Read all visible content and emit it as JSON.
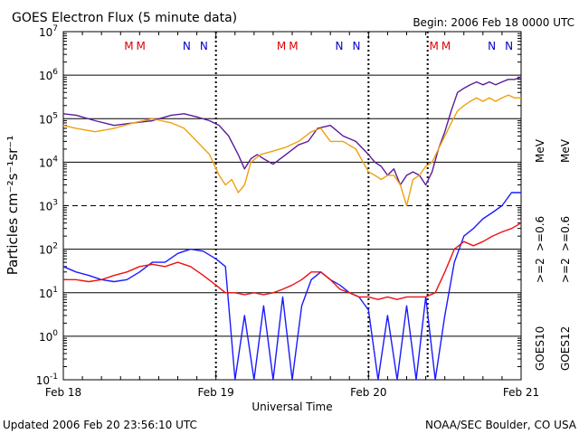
{
  "header": {
    "title": "GOES Electron Flux (5 minute data)",
    "begin": "Begin: 2006 Feb 18 0000 UTC"
  },
  "footer": {
    "updated": "Updated 2006 Feb 20 23:56:10 UTC",
    "credit": "NOAA/SEC Boulder, CO USA"
  },
  "colors": {
    "goes10_ge2": "#1a1aff",
    "goes10_ge06": "#5a1a9a",
    "goes12_ge2": "#ee1111",
    "goes12_ge06": "#f0a010",
    "marker_M": "#dd0000",
    "marker_N": "#0000cc"
  },
  "chart_data": {
    "type": "line",
    "title": "GOES Electron Flux (5 minute data)",
    "xlabel": "Universal Time",
    "ylabel": "Particles cm⁻²s⁻¹sr⁻¹",
    "x_unit": "hours since 2006 Feb 18 0000 UTC",
    "xlim": [
      0,
      72
    ],
    "ylim": [
      0.1,
      10000000
    ],
    "yscale": "log",
    "x_tick_labels": [
      "Feb 18",
      "Feb 19",
      "Feb 20",
      "Feb 21"
    ],
    "y_tick_labels": [
      {
        "base": "10",
        "exp": "7"
      },
      {
        "base": "10",
        "exp": "6"
      },
      {
        "base": "10",
        "exp": "5"
      },
      {
        "base": "10",
        "exp": "4"
      },
      {
        "base": "10",
        "exp": "3"
      },
      {
        "base": "10",
        "exp": "2"
      },
      {
        "base": "10",
        "exp": "1"
      },
      {
        "base": "10",
        "exp": "0"
      },
      {
        "base": "10",
        "exp": "-1"
      }
    ],
    "y_ticks": [
      10000000,
      1000000,
      100000,
      10000,
      1000,
      100,
      10,
      1,
      0.1
    ],
    "threshold_lines": [
      1000
    ],
    "grid": true,
    "legend_right": {
      "satellites": [
        "GOES10",
        "GOES12"
      ],
      "energies_goes10": [
        ">=2",
        ">=0.6"
      ],
      "energies_goes12": [
        ">=2",
        ">=0.6"
      ],
      "unit": "MeV"
    },
    "markers": [
      {
        "label": "M",
        "x": 10.3
      },
      {
        "label": "M",
        "x": 12.2
      },
      {
        "label": "N",
        "x": 19.4
      },
      {
        "label": "N",
        "x": 22.1
      },
      {
        "label": "M",
        "x": 34.3
      },
      {
        "label": "M",
        "x": 36.2
      },
      {
        "label": "N",
        "x": 43.4
      },
      {
        "label": "N",
        "x": 46.1
      },
      {
        "label": "M",
        "x": 58.3
      },
      {
        "label": "M",
        "x": 60.2
      },
      {
        "label": "N",
        "x": 67.4
      },
      {
        "label": "N",
        "x": 70.1
      }
    ],
    "dashed_marks": [
      24.0,
      48.0,
      57.3
    ],
    "series": [
      {
        "name": "GOES10 >=0.6 MeV",
        "x": [
          0,
          2,
          5,
          8,
          11,
          14,
          17,
          19,
          21,
          23,
          24.5,
          26,
          27.5,
          28.5,
          29.5,
          30.5,
          31.5,
          33,
          35,
          37,
          38.5,
          40,
          42,
          44,
          46,
          48,
          49,
          50,
          51,
          52,
          53,
          54,
          55,
          56,
          57,
          58,
          59,
          60,
          61,
          62,
          63,
          64,
          65,
          66,
          67,
          68,
          69,
          70,
          71,
          72
        ],
        "y": [
          130000,
          120000,
          90000,
          70000,
          80000,
          90000,
          120000,
          130000,
          110000,
          90000,
          70000,
          40000,
          15000,
          7000,
          12000,
          15000,
          12000,
          9000,
          15000,
          25000,
          30000,
          60000,
          70000,
          40000,
          30000,
          15000,
          10000,
          8000,
          5000,
          7000,
          3000,
          5000,
          6000,
          5000,
          3000,
          6000,
          20000,
          50000,
          150000,
          400000,
          500000,
          600000,
          700000,
          600000,
          700000,
          600000,
          700000,
          800000,
          800000,
          900000
        ]
      },
      {
        "name": "GOES12 >=0.6 MeV",
        "x": [
          0,
          2,
          5,
          8,
          11,
          14,
          17,
          19,
          21,
          23,
          24.5,
          25.5,
          26.5,
          27.5,
          28.5,
          29.5,
          31,
          33,
          35,
          37,
          39,
          40.5,
          42,
          44,
          46,
          48,
          49,
          50,
          51,
          52,
          53,
          54,
          55,
          56,
          57,
          58,
          59,
          60,
          61,
          62,
          63,
          64,
          65,
          66,
          67,
          68,
          69,
          70,
          71,
          72
        ],
        "y": [
          70000,
          60000,
          50000,
          60000,
          80000,
          100000,
          80000,
          60000,
          30000,
          15000,
          5000,
          3000,
          4000,
          2000,
          3000,
          10000,
          15000,
          18000,
          22000,
          30000,
          50000,
          60000,
          30000,
          30000,
          20000,
          6000,
          5000,
          4000,
          5000,
          5000,
          3000,
          1000,
          4000,
          5000,
          8000,
          10000,
          20000,
          40000,
          80000,
          150000,
          200000,
          250000,
          300000,
          250000,
          300000,
          250000,
          300000,
          350000,
          300000,
          300000
        ]
      },
      {
        "name": "GOES10 >=2 MeV",
        "x": [
          0,
          2,
          4,
          6,
          8,
          10,
          12,
          14,
          16,
          18,
          20,
          22,
          24,
          25.5,
          27,
          28.5,
          30,
          31.5,
          33,
          34.5,
          36,
          37.5,
          39,
          40.5,
          42,
          43.5,
          45,
          46.5,
          48,
          49.5,
          51,
          52.5,
          54,
          55.5,
          57,
          58.5,
          60,
          61.5,
          63,
          64.5,
          66,
          67.5,
          69,
          70.5,
          72
        ],
        "y": [
          40,
          30,
          25,
          20,
          18,
          20,
          30,
          50,
          50,
          80,
          100,
          90,
          60,
          40,
          0.1,
          3,
          0.1,
          5,
          0.1,
          8,
          0.1,
          5,
          20,
          30,
          20,
          15,
          10,
          8,
          4,
          0.1,
          3,
          0.1,
          5,
          0.1,
          8,
          0.1,
          3,
          50,
          200,
          300,
          500,
          700,
          1000,
          2000,
          2000
        ]
      },
      {
        "name": "GOES12 >=2 MeV",
        "x": [
          0,
          2,
          4,
          6,
          8,
          10,
          12,
          14,
          16,
          18,
          20,
          22,
          24,
          25.5,
          27,
          28.5,
          30,
          31.5,
          33,
          34.5,
          36,
          37.5,
          39,
          40.5,
          42,
          43.5,
          45,
          46.5,
          48,
          49.5,
          51,
          52.5,
          54,
          55.5,
          57,
          58.5,
          60,
          61.5,
          63,
          64.5,
          66,
          67.5,
          69,
          70.5,
          72
        ],
        "y": [
          20,
          20,
          18,
          20,
          25,
          30,
          40,
          45,
          40,
          50,
          40,
          25,
          15,
          10,
          10,
          9,
          10,
          9,
          10,
          12,
          15,
          20,
          30,
          30,
          20,
          12,
          10,
          8,
          8,
          7,
          8,
          7,
          8,
          8,
          8,
          10,
          30,
          100,
          150,
          120,
          150,
          200,
          250,
          300,
          400
        ]
      }
    ]
  }
}
